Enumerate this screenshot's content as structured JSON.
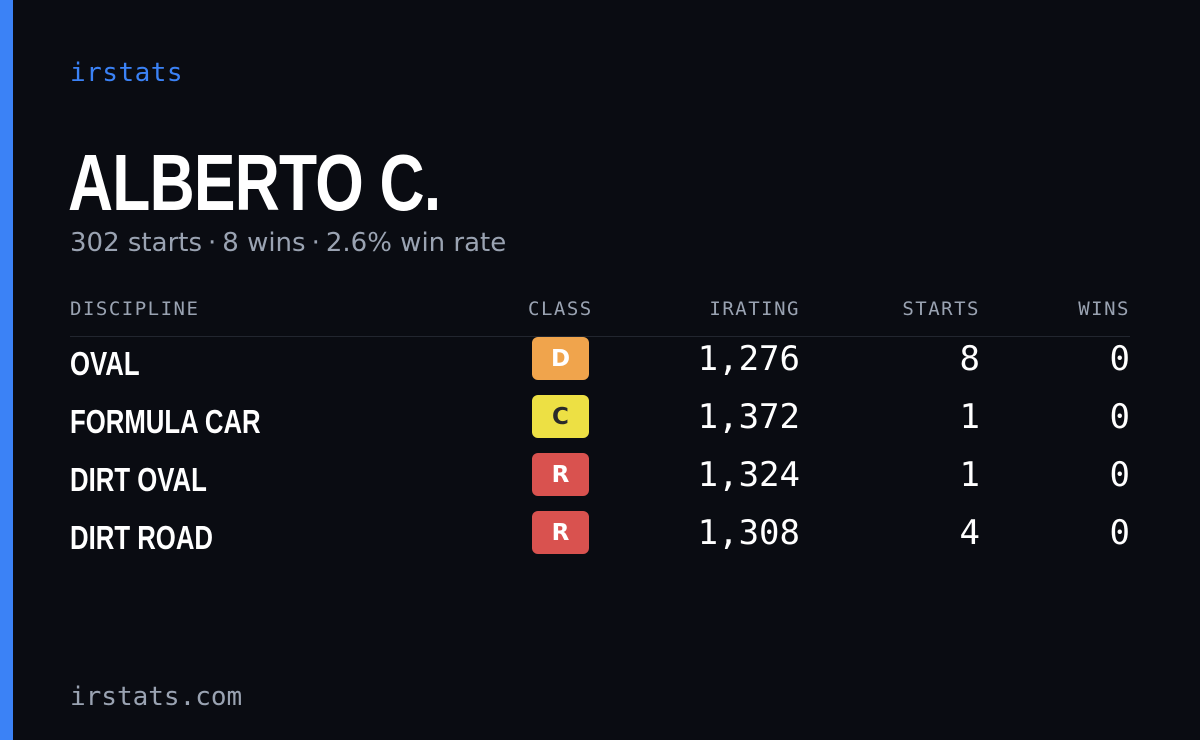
{
  "brand": "irstats",
  "driver": {
    "name": "ALBERTO C."
  },
  "summary": {
    "starts": "302 starts",
    "wins": "8 wins",
    "win_rate": "2.6% win rate",
    "separator": "·"
  },
  "table": {
    "headers": {
      "discipline": "DISCIPLINE",
      "class": "CLASS",
      "irating": "IRATING",
      "starts": "STARTS",
      "wins": "WINS"
    },
    "rows": [
      {
        "discipline": "OVAL",
        "class": "D",
        "class_color": "#f0a44c",
        "class_text_color": "#ffffff",
        "irating": "1,276",
        "starts": "8",
        "wins": "0"
      },
      {
        "discipline": "FORMULA CAR",
        "class": "C",
        "class_color": "#ede044",
        "class_text_color": "#2a2a2a",
        "irating": "1,372",
        "starts": "1",
        "wins": "0"
      },
      {
        "discipline": "DIRT OVAL",
        "class": "R",
        "class_color": "#d9524f",
        "class_text_color": "#ffffff",
        "irating": "1,324",
        "starts": "1",
        "wins": "0"
      },
      {
        "discipline": "DIRT ROAD",
        "class": "R",
        "class_color": "#d9524f",
        "class_text_color": "#ffffff",
        "irating": "1,308",
        "starts": "4",
        "wins": "0"
      }
    ]
  },
  "footer": {
    "url": "irstats.com"
  },
  "colors": {
    "accent": "#3b82f6",
    "background": "#0a0c12",
    "muted": "#9aa3b2"
  }
}
